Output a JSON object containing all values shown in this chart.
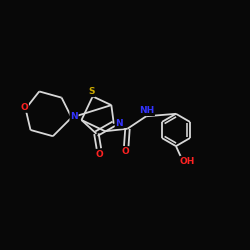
{
  "background_color": "#080808",
  "bond_color": "#d8d8d8",
  "atom_colors": {
    "N": "#3333ff",
    "O": "#ff2222",
    "S": "#ccaa00",
    "C": "#d8d8d8"
  },
  "font_size": 6.5,
  "line_width": 1.3,
  "figsize": [
    2.5,
    2.5
  ],
  "dpi": 100,
  "xlim": [
    0,
    10
  ],
  "ylim": [
    0,
    10
  ]
}
